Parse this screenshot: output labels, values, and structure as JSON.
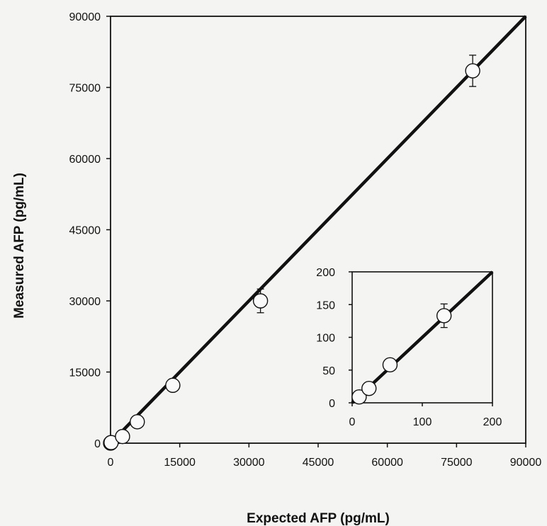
{
  "chart_data": [
    {
      "type": "scatter",
      "xlabel": "Expected AFP (pg/mL)",
      "ylabel": "Measured AFP (pg/mL)",
      "xlim": [
        0,
        90000
      ],
      "ylim": [
        0,
        90000
      ],
      "xticks": [
        0,
        15000,
        30000,
        45000,
        60000,
        75000,
        90000
      ],
      "yticks": [
        0,
        15000,
        30000,
        45000,
        60000,
        75000,
        90000
      ],
      "xtick_labels": [
        "0",
        "15000",
        "30000",
        "45000",
        "60000",
        "75000",
        "90000"
      ],
      "ytick_labels": [
        "0",
        "15000",
        "30000",
        "45000",
        "60000",
        "75000",
        "90000"
      ],
      "grid": false,
      "marker": "open-circle",
      "line": "identity y=x",
      "points": [
        {
          "x": 10,
          "y": 9,
          "err": 3
        },
        {
          "x": 25,
          "y": 22,
          "err": 4
        },
        {
          "x": 55,
          "y": 58,
          "err": 8
        },
        {
          "x": 130,
          "y": 132,
          "err": 18
        },
        {
          "x": 2600,
          "y": 1400,
          "err": 300
        },
        {
          "x": 5800,
          "y": 4500,
          "err": 500
        },
        {
          "x": 13500,
          "y": 12200,
          "err": 800
        },
        {
          "x": 32500,
          "y": 30000,
          "err": 2500
        },
        {
          "x": 78500,
          "y": 78500,
          "err": 3300
        }
      ]
    },
    {
      "type": "scatter",
      "role": "inset",
      "xlim": [
        0,
        200
      ],
      "ylim": [
        0,
        200
      ],
      "xticks": [
        0,
        100,
        200
      ],
      "yticks": [
        0,
        50,
        100,
        150,
        200
      ],
      "xtick_labels": [
        "0",
        "100",
        "200"
      ],
      "ytick_labels": [
        "0",
        "50",
        "100",
        "150",
        "200"
      ],
      "grid": false,
      "marker": "open-circle",
      "line": "identity y=x",
      "points": [
        {
          "x": 10,
          "y": 9,
          "err": 3
        },
        {
          "x": 24,
          "y": 22,
          "err": 4
        },
        {
          "x": 54,
          "y": 58,
          "err": 8
        },
        {
          "x": 131,
          "y": 133,
          "err": 18
        }
      ]
    }
  ]
}
